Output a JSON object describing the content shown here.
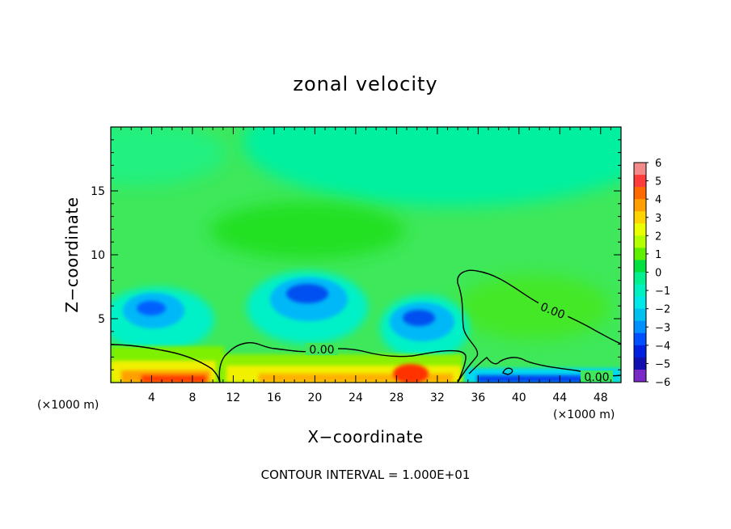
{
  "chart_data": {
    "type": "heatmap",
    "title": "zonal velocity",
    "xlabel": "X−coordinate",
    "ylabel": "Z−coordinate",
    "x_unit_left": "(×1000 m)",
    "x_unit_right": "(×1000 m)",
    "footer": "CONTOUR INTERVAL = 1.000E+01",
    "xlim": [
      0,
      50
    ],
    "ylim": [
      0,
      20
    ],
    "x_ticks": [
      4,
      8,
      12,
      16,
      20,
      24,
      28,
      32,
      36,
      40,
      44,
      48
    ],
    "x_tick_labels": [
      "4",
      "8",
      "12",
      "16",
      "20",
      "24",
      "28",
      "32",
      "36",
      "40",
      "44",
      "48"
    ],
    "y_ticks": [
      5,
      10,
      15
    ],
    "y_tick_labels": [
      "5",
      "10",
      "15"
    ],
    "colorbar": {
      "ticks": [
        6,
        5,
        4,
        3,
        2,
        1,
        0,
        -1,
        -2,
        -3,
        -4,
        -5,
        -6
      ],
      "tick_labels": [
        "6",
        "5",
        "4",
        "3",
        "2",
        "1",
        "0",
        "−1",
        "−2",
        "−3",
        "−4",
        "−5",
        "−6"
      ],
      "range": [
        -6,
        6
      ],
      "colors": [
        "#f28a8a",
        "#ff3b3b",
        "#ff6a00",
        "#ffa000",
        "#ffd400",
        "#eaff00",
        "#b4ff00",
        "#5ff000",
        "#00e040",
        "#00f090",
        "#00f0c0",
        "#00e8e8",
        "#00c0f0",
        "#0090ff",
        "#0050ff",
        "#0020e0",
        "#1010b0",
        "#7a28c8"
      ]
    },
    "contour_labels": [
      "0.00",
      "0.00",
      "0.00"
    ],
    "field_features": [
      {
        "kind": "negative-core",
        "x": 4.2,
        "z": 5.8,
        "peak": -3
      },
      {
        "kind": "negative-core",
        "x": 19.5,
        "z": 6.9,
        "peak": -3.5
      },
      {
        "kind": "negative-core",
        "x": 30,
        "z": 5.1,
        "peak": -3.5
      },
      {
        "kind": "negative-core",
        "x": 44,
        "z": 0.3,
        "peak": -4
      },
      {
        "kind": "positive-layer",
        "x": 7,
        "z": 0.5,
        "peak": 4
      },
      {
        "kind": "positive-layer",
        "x": 20,
        "z": 0.6,
        "peak": 3
      },
      {
        "kind": "positive-layer",
        "x": 30,
        "z": 0.8,
        "peak": 5
      },
      {
        "kind": "weak-negative-region",
        "x": 32,
        "z": 17,
        "peak": -1.5
      },
      {
        "kind": "weak-positive-region",
        "x": 20,
        "z": 12,
        "peak": 0.5
      }
    ]
  }
}
